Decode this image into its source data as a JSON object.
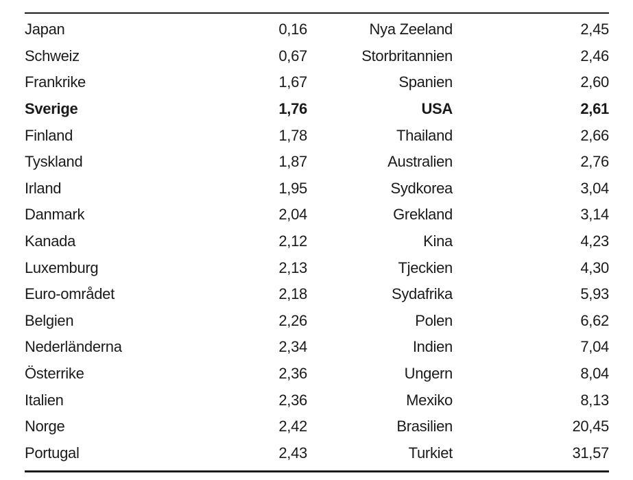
{
  "table": {
    "rows": [
      {
        "country_left": "Japan",
        "value_left": "0,16",
        "country_right": "Nya Zeeland",
        "value_right": "2,45"
      },
      {
        "country_left": "Schweiz",
        "value_left": "0,67",
        "country_right": "Storbritannien",
        "value_right": "2,46"
      },
      {
        "country_left": "Frankrike",
        "value_left": "1,67",
        "country_right": "Spanien",
        "value_right": "2,60"
      },
      {
        "country_left": "Sverige",
        "value_left": "1,76",
        "country_right": "USA",
        "value_right": "2,61",
        "highlight": true
      },
      {
        "country_left": "Finland",
        "value_left": "1,78",
        "country_right": "Thailand",
        "value_right": "2,66"
      },
      {
        "country_left": "Tyskland",
        "value_left": "1,87",
        "country_right": "Australien",
        "value_right": "2,76"
      },
      {
        "country_left": "Irland",
        "value_left": "1,95",
        "country_right": "Sydkorea",
        "value_right": "3,04"
      },
      {
        "country_left": "Danmark",
        "value_left": "2,04",
        "country_right": "Grekland",
        "value_right": "3,14"
      },
      {
        "country_left": "Kanada",
        "value_left": "2,12",
        "country_right": "Kina",
        "value_right": "4,23"
      },
      {
        "country_left": "Luxemburg",
        "value_left": "2,13",
        "country_right": "Tjeckien",
        "value_right": "4,30"
      },
      {
        "country_left": "Euro-området",
        "value_left": "2,18",
        "country_right": "Sydafrika",
        "value_right": "5,93"
      },
      {
        "country_left": "Belgien",
        "value_left": "2,26",
        "country_right": "Polen",
        "value_right": "6,62"
      },
      {
        "country_left": "Nederländerna",
        "value_left": "2,34",
        "country_right": "Indien",
        "value_right": "7,04"
      },
      {
        "country_left": "Österrike",
        "value_left": "2,36",
        "country_right": "Ungern",
        "value_right": "8,04"
      },
      {
        "country_left": "Italien",
        "value_left": "2,36",
        "country_right": "Mexiko",
        "value_right": "8,13"
      },
      {
        "country_left": "Norge",
        "value_left": "2,42",
        "country_right": "Brasilien",
        "value_right": "20,45"
      },
      {
        "country_left": "Portugal",
        "value_left": "2,43",
        "country_right": "Turkiet",
        "value_right": "31,57"
      }
    ]
  }
}
